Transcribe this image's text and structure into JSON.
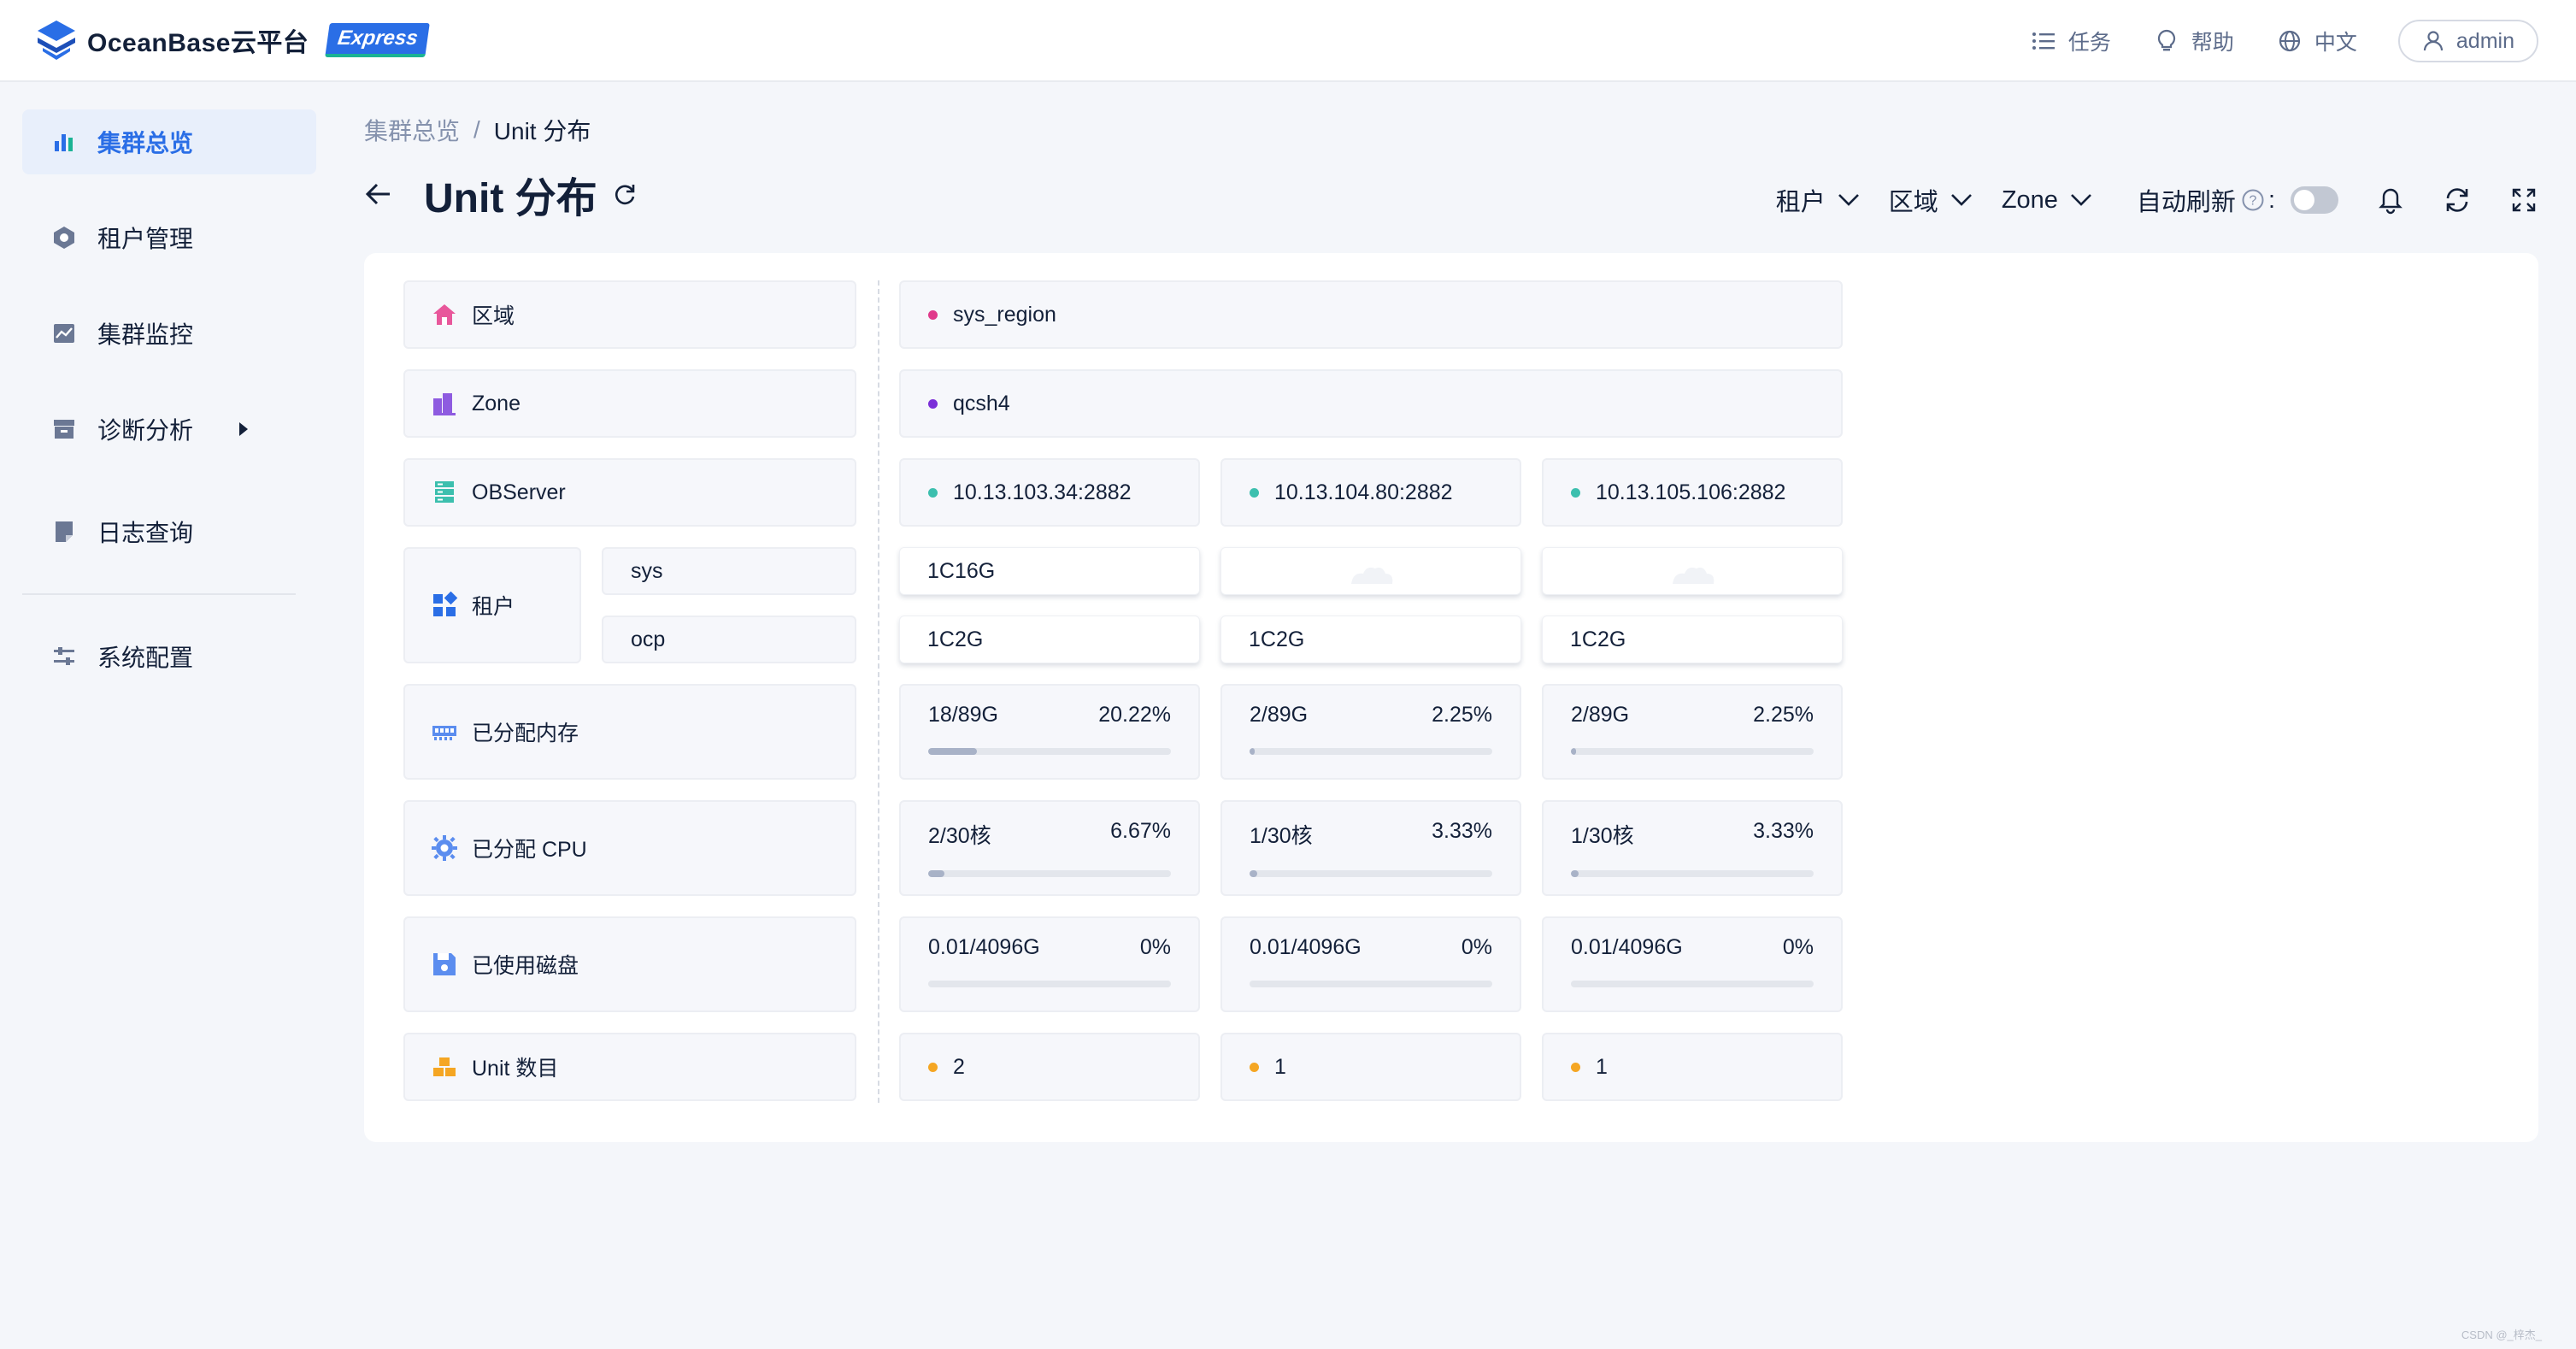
{
  "app": {
    "brand": "OceanBase云平台",
    "edition": "Express"
  },
  "header": {
    "tasks_label": "任务",
    "help_label": "帮助",
    "language_label": "中文",
    "user_label": "admin"
  },
  "sidebar": {
    "items": [
      {
        "label": "集群总览",
        "icon": "bar-chart-icon",
        "active": true
      },
      {
        "label": "租户管理",
        "icon": "hexagon-icon"
      },
      {
        "label": "集群监控",
        "icon": "monitor-chart-icon"
      },
      {
        "label": "诊断分析",
        "icon": "archive-box-icon",
        "has_submenu": true
      },
      {
        "label": "日志查询",
        "icon": "document-icon"
      },
      {
        "label": "系统配置",
        "icon": "sliders-icon"
      }
    ]
  },
  "breadcrumb": {
    "parent": "集群总览",
    "separator": "/",
    "current": "Unit 分布"
  },
  "page": {
    "title": "Unit 分布"
  },
  "filters": {
    "tenant": "租户",
    "region": "区域",
    "zone": "Zone",
    "auto_refresh": "自动刷新",
    "colon": ":"
  },
  "rows": {
    "region": "区域",
    "zone": "Zone",
    "observer": "OBServer",
    "tenant": "租户",
    "memory": "已分配内存",
    "cpu": "已分配 CPU",
    "disk": "已使用磁盘",
    "unit_count": "Unit 数目"
  },
  "tenants": [
    "sys",
    "ocp"
  ],
  "region_value": "sys_region",
  "zone_value": "qcsh4",
  "servers": [
    {
      "address": "10.13.103.34:2882",
      "sys_unit": "1C16G",
      "ocp_unit": "1C2G",
      "memory": {
        "value": "18/89G",
        "percent": "20.22%",
        "fraction": 0.2022
      },
      "cpu": {
        "value": "2/30核",
        "percent": "6.67%",
        "fraction": 0.0667
      },
      "disk": {
        "value": "0.01/4096G",
        "percent": "0%",
        "fraction": 0
      },
      "unit_count": "2"
    },
    {
      "address": "10.13.104.80:2882",
      "sys_unit": "",
      "ocp_unit": "1C2G",
      "memory": {
        "value": "2/89G",
        "percent": "2.25%",
        "fraction": 0.0225
      },
      "cpu": {
        "value": "1/30核",
        "percent": "3.33%",
        "fraction": 0.0333
      },
      "disk": {
        "value": "0.01/4096G",
        "percent": "0%",
        "fraction": 0
      },
      "unit_count": "1"
    },
    {
      "address": "10.13.105.106:2882",
      "sys_unit": "",
      "ocp_unit": "1C2G",
      "memory": {
        "value": "2/89G",
        "percent": "2.25%",
        "fraction": 0.0225
      },
      "cpu": {
        "value": "1/30核",
        "percent": "3.33%",
        "fraction": 0.0333
      },
      "disk": {
        "value": "0.01/4096G",
        "percent": "0%",
        "fraction": 0
      },
      "unit_count": "1"
    }
  ],
  "colors": {
    "primary": "#2a6ee6",
    "region_dot": "#e0398b",
    "zone_dot": "#7b2fd8",
    "server_dot": "#3cbfae",
    "unit_dot": "#f5a623"
  },
  "watermark": "CSDN @_梓杰_"
}
